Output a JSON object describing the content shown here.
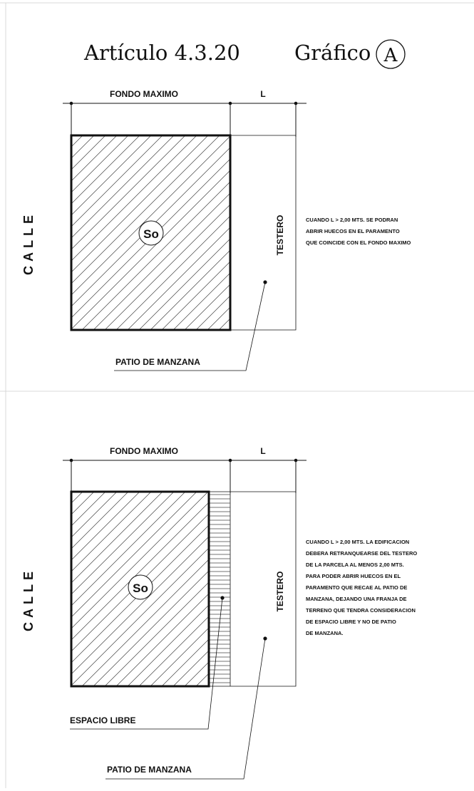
{
  "header": {
    "article": "Artículo 4.3.20",
    "graph_label": "Gráfico",
    "graph_letter": "A"
  },
  "colors": {
    "ink": "#111111",
    "frame": "#d8d8d8",
    "hatch": "#444444"
  },
  "panel_a": {
    "fondo_label": "FONDO MAXIMO",
    "l_label": "L",
    "street_label": "CALLE",
    "so_label": "So",
    "testero_label": "TESTERO",
    "patio_label": "PATIO DE MANZANA",
    "note_lines": [
      "CUANDO L > 2,00 MTS. SE PODRAN",
      "ABRIR HUECOS EN EL PARAMENTO",
      "QUE COINCIDE CON EL FONDO MAXIMO"
    ]
  },
  "panel_b": {
    "fondo_label": "FONDO MAXIMO",
    "l_label": "L",
    "street_label": "CALLE",
    "so_label": "So",
    "testero_label": "TESTERO",
    "espacio_label": "ESPACIO LIBRE",
    "patio_label": "PATIO DE MANZANA",
    "note_lines": [
      "CUANDO L > 2,00 MTS. LA EDIFICACION",
      "DEBERA RETRANQUEARSE DEL TESTERO",
      "DE LA PARCELA AL MENOS 2,00 MTS.",
      "PARA PODER ABRIR HUECOS EN EL",
      "PARAMENTO QUE RECAE AL PATIO DE",
      "MANZANA, DEJANDO UNA FRANJA DE",
      "TERRENO QUE TENDRA CONSIDERACION",
      "DE ESPACIO LIBRE Y NO DE PATIO",
      "DE MANZANA."
    ]
  }
}
